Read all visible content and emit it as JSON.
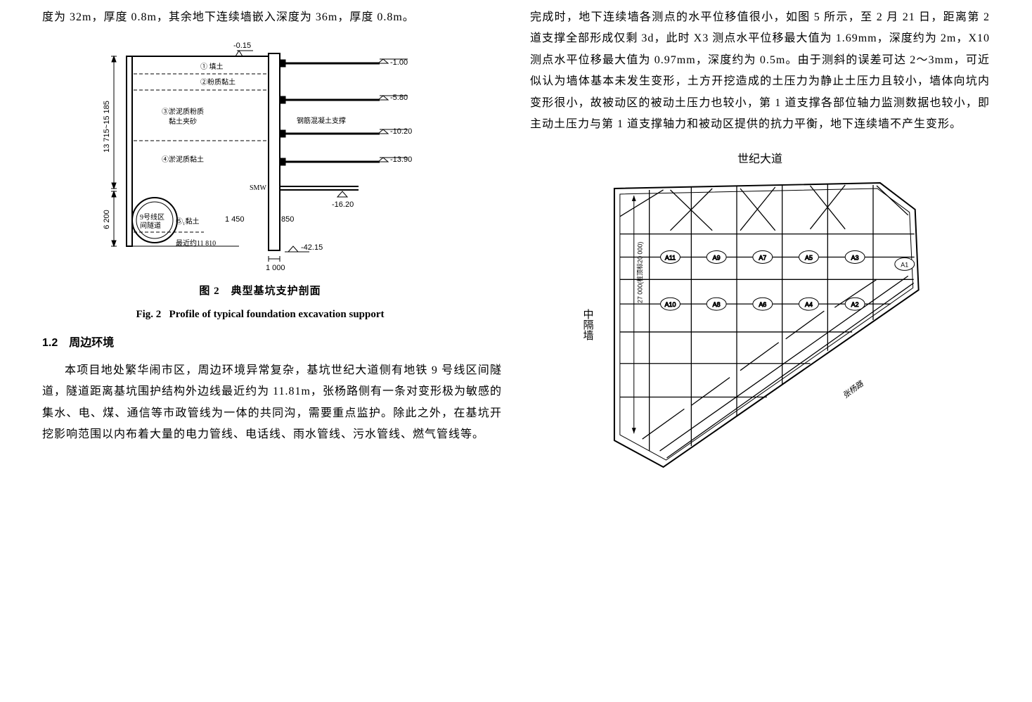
{
  "col1": {
    "para1": "度为 32m，厚度 0.8m，其余地下连续墙嵌入深度为 36m，厚度 0.8m。",
    "section_num": "1.2",
    "section_title": "周边环境",
    "para2": "本项目地处繁华闹市区，周边环境异常复杂，基坑世纪大道侧有地铁 9 号线区间隧道，隧道距离基坑围护结构外边线最近约为 11.81m，张杨路侧有一条对变形极为敏感的集水、电、煤、通信等市政管线为一体的共同沟，需要重点监护。除此之外，在基坑开挖影响范围以内布着大量的电力管线、电话线、雨水管线、污水管线、燃气管线等。"
  },
  "col2": {
    "para1": "完成时，地下连续墙各测点的水平位移值很小，如图 5 所示，至 2 月 21 日，距离第 2 道支撑全部形成仅剩 3d，此时 X3 测点水平位移最大值为 1.69mm，深度约为 2m，X10 测点水平位移最大值为 0.97mm，深度约为 0.5m。由于测斜的误差可达 2～3mm，可近似认为墙体基本未发生变形，土方开挖造成的土压力为静止土压力且较小，墙体向坑内变形很小，故被动区的被动土压力也较小，第 1 道支撑各部位轴力监测数据也较小，即主动土压力与第 1 道支撑轴力和被动区提供的抗力平衡，地下连续墙不产生变形。"
  },
  "fig2": {
    "caption_cn": "图 2　典型基坑支护剖面",
    "caption_en_label": "Fig. 2",
    "caption_en_text": "Profile of typical foundation excavation support",
    "soil1": "① 填土",
    "soil2": "②粉质黏土",
    "soil3a": "③淤泥质粉质",
    "soil3b": "黏土夹砂",
    "soil4": "④淤泥质黏土",
    "soil5": "⑤₁黏土",
    "support_label": "钢筋混凝土支撑",
    "smw": "SMW",
    "tunnel_a": "9号线区",
    "tunnel_b": "间隧道",
    "dim_left_1": "13 715~15 185",
    "dim_left_2": "6 200",
    "dim_1450": "1 450",
    "dim_850": "850",
    "dim_1000": "1 000",
    "dim_11810": "最近约11 810",
    "lv_top": "-0.15",
    "lv_1": "-1.00",
    "lv_2": "-5.80",
    "lv_3": "-10.20",
    "lv_4": "-13.90",
    "lv_5": "-16.20",
    "lv_bot": "-42.15",
    "colors": {
      "line": "#000000",
      "hatch": "#000000",
      "bg": "#ffffff"
    }
  },
  "fig3": {
    "top_label": "世纪大道",
    "left_label": "中隔墙",
    "right_label": "张杨路",
    "dim_label": "27 000(桩顶标20 000)",
    "nodes_top": [
      "A11",
      "A9",
      "A7",
      "A5",
      "A3"
    ],
    "nodes_bot": [
      "A10",
      "A8",
      "A6",
      "A4",
      "A2"
    ],
    "node_right": "A1",
    "colors": {
      "line": "#000000",
      "fill": "#ffffff"
    }
  }
}
